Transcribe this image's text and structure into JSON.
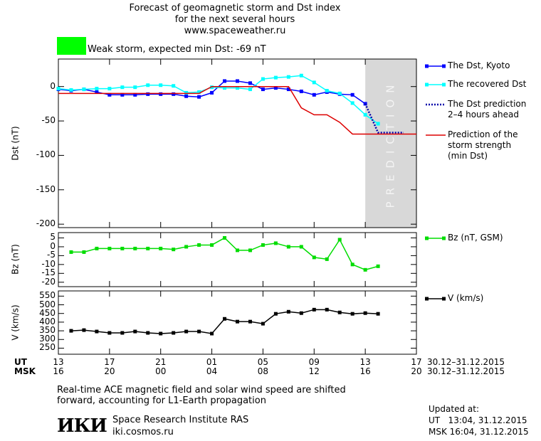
{
  "header": {
    "title": [
      "Forecast of geomagnetic storm and Dst index",
      "for the next several hours",
      "www.spaceweather.ru"
    ],
    "status": "Weak storm, expected min Dst: -69 nT",
    "status_color": "#00ff00"
  },
  "x_axis": {
    "xlim": [
      13,
      41
    ],
    "xticks": [
      13,
      17,
      21,
      {
        "value": 25,
        "label": "01"
      },
      {
        "value": 29,
        "label": "05"
      },
      {
        "value": 33,
        "label": "09"
      },
      {
        "value": 37,
        "label": "13"
      },
      {
        "value": 41,
        "label": "17"
      }
    ],
    "msk_ticks": [
      {
        "value": 13,
        "label": "16"
      },
      {
        "value": 17,
        "label": "20"
      },
      {
        "value": 21,
        "label": "00"
      },
      {
        "value": 25,
        "label": "04"
      },
      {
        "value": 29,
        "label": "08"
      },
      {
        "value": 33,
        "label": "12"
      },
      {
        "value": 37,
        "label": "16"
      },
      {
        "value": 41,
        "label": "20"
      }
    ],
    "ut_label": "UT",
    "msk_label": "MSK",
    "date_range": "30.12–31.12.2015"
  },
  "chart_data": [
    {
      "type": "line",
      "ylabel": "Dst (nT)",
      "ylim": [
        -205,
        40
      ],
      "yticks": [
        0,
        -50,
        -100,
        -150,
        -200
      ],
      "prediction_zone": [
        37,
        41
      ],
      "prediction_label": "PREDICTION",
      "x": [
        13,
        14,
        15,
        16,
        17,
        18,
        19,
        20,
        21,
        22,
        23,
        24,
        25,
        26,
        27,
        28,
        29,
        30,
        31,
        32,
        33,
        34,
        35,
        36,
        37,
        38,
        39,
        40,
        41
      ],
      "series": [
        {
          "name": "The Dst, Kyoto",
          "color": "#0000ff",
          "marker": true,
          "dotted": false,
          "values": [
            -4,
            -6,
            -4,
            -8,
            -12,
            -12,
            -12,
            -11,
            -11,
            -11,
            -14,
            -15,
            -9,
            8,
            8,
            5,
            -4,
            -2,
            -4,
            -7,
            -12,
            -8,
            -11,
            -12,
            -25,
            null,
            null,
            null,
            null
          ]
        },
        {
          "name": "The recovered Dst",
          "color": "#00ffff",
          "marker": true,
          "dotted": false,
          "values": [
            -3,
            -5,
            -4,
            -3,
            -3,
            -1,
            -1,
            2,
            2,
            1,
            -9,
            -8,
            -1,
            -2,
            -2,
            -4,
            11,
            13,
            14,
            16,
            6,
            -6,
            -10,
            -24,
            -41,
            -54,
            null,
            null,
            null
          ]
        },
        {
          "name": "The Dst prediction\n2–4 hours ahead",
          "color": "#0000aa",
          "marker": false,
          "dotted": true,
          "values": [
            null,
            null,
            null,
            null,
            null,
            null,
            null,
            null,
            null,
            null,
            null,
            null,
            null,
            null,
            null,
            null,
            null,
            null,
            null,
            null,
            null,
            null,
            null,
            null,
            -25,
            -67,
            -67,
            -67,
            null
          ]
        },
        {
          "name": "Prediction of the\nstorm strength\n(min Dst)",
          "color": "#dd0000",
          "marker": false,
          "dotted": false,
          "values": [
            -10,
            -10,
            -10,
            -10,
            -10,
            -10,
            -10,
            -10,
            -10,
            -10,
            -10,
            -10,
            0,
            0,
            0,
            0,
            0,
            0,
            0,
            -31,
            -41,
            -41,
            -52,
            -69,
            -69,
            -69,
            -69,
            -69,
            -69
          ]
        }
      ]
    },
    {
      "type": "line",
      "ylabel": "Bz (nT)",
      "ylim": [
        -22.5,
        8
      ],
      "yticks": [
        5,
        0,
        -5,
        -10,
        -15,
        -20
      ],
      "x": [
        13,
        14,
        15,
        16,
        17,
        18,
        19,
        20,
        21,
        22,
        23,
        24,
        25,
        26,
        27,
        28,
        29,
        30,
        31,
        32,
        33,
        34,
        35,
        36,
        37,
        38
      ],
      "series": [
        {
          "name": "Bz (nT, GSM)",
          "color": "#00dd00",
          "marker": true,
          "dotted": false,
          "values": [
            null,
            -3,
            -3,
            -1,
            -1,
            -1,
            -1,
            -1,
            -1,
            -1.5,
            0,
            1,
            1,
            5,
            -2,
            -2,
            1,
            2,
            0,
            0,
            -6,
            -7,
            4,
            -10,
            -13,
            -11
          ]
        }
      ]
    },
    {
      "type": "line",
      "ylabel": "V (km/s)",
      "ylim": [
        215,
        580
      ],
      "yticks": [
        550,
        500,
        450,
        400,
        350,
        300,
        250
      ],
      "x": [
        13,
        14,
        15,
        16,
        17,
        18,
        19,
        20,
        21,
        22,
        23,
        24,
        25,
        26,
        27,
        28,
        29,
        30,
        31,
        32,
        33,
        34,
        35,
        36,
        37,
        38
      ],
      "series": [
        {
          "name": "V (km/s)",
          "color": "#000000",
          "marker": true,
          "dotted": false,
          "values": [
            null,
            350,
            354,
            346,
            338,
            338,
            346,
            338,
            334,
            338,
            346,
            346,
            334,
            419,
            403,
            403,
            391,
            448,
            460,
            452,
            472,
            472,
            456,
            448,
            452,
            448
          ]
        }
      ]
    }
  ],
  "footer": {
    "note": "Real-time ACE magnetic field and solar wind speed are shifted\nforward, accounting for L1-Earth propagation",
    "logo": "ИКИ",
    "institute": "Space Research Institute RAS",
    "site": "iki.cosmos.ru",
    "updated": [
      "Updated at:",
      "UT   13:04, 31.12.2015",
      "MSK 16:04, 31.12.2015"
    ]
  }
}
